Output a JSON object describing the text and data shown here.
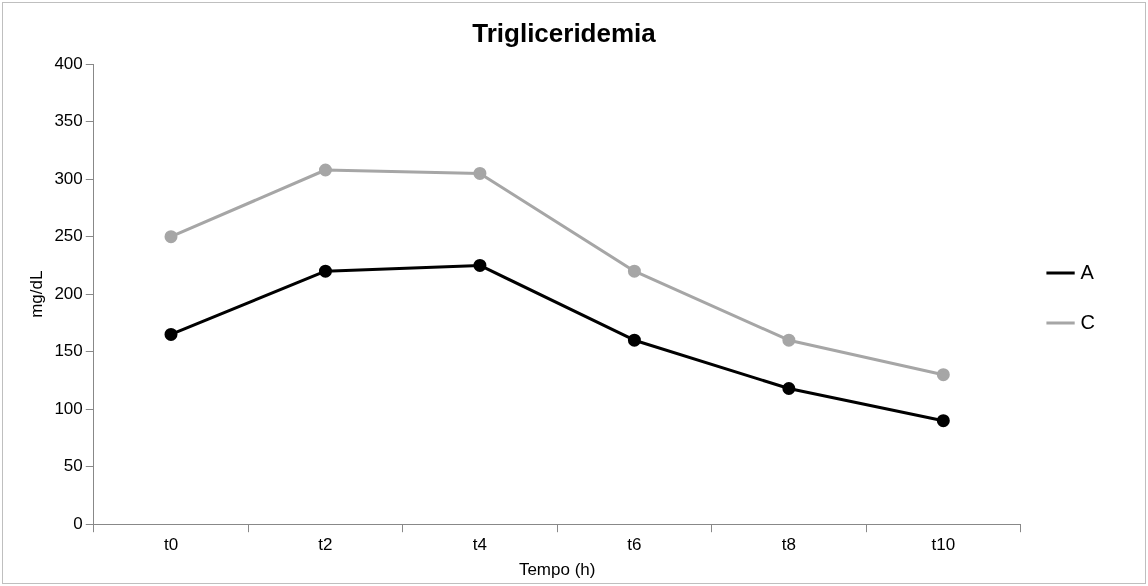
{
  "chart_data": {
    "type": "line",
    "title": "Trigliceridemia",
    "xlabel": "Tempo (h)",
    "ylabel": "mg/dL",
    "categories": [
      "t0",
      "t2",
      "t4",
      "t6",
      "t8",
      "t10"
    ],
    "series": [
      {
        "name": "A",
        "color": "#000000",
        "values": [
          165,
          220,
          225,
          160,
          118,
          90
        ]
      },
      {
        "name": "C",
        "color": "#a6a6a6",
        "values": [
          250,
          308,
          305,
          220,
          160,
          130
        ]
      }
    ],
    "ylim": [
      0,
      400
    ],
    "yticks": [
      0,
      50,
      100,
      150,
      200,
      250,
      300,
      350,
      400
    ],
    "grid": false,
    "legend": "right",
    "marker": "circle",
    "line_style": "solid"
  }
}
